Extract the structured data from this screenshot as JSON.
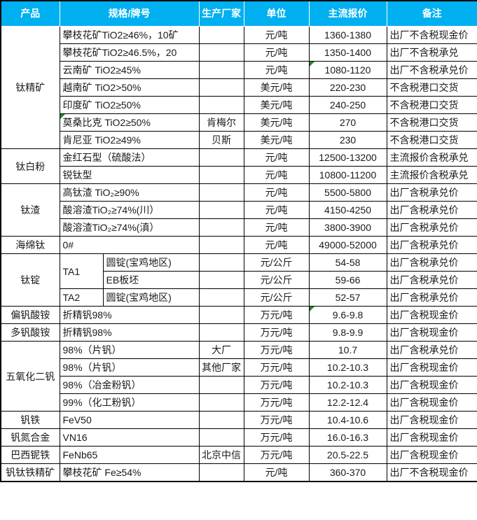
{
  "table": {
    "header_bg": "#00b0f0",
    "header_text_color": "#ffffff",
    "grid_color": "#000000",
    "flag_color": "#1e8e1e",
    "columns": [
      "产品",
      "规格/牌号",
      "生产厂家",
      "单位",
      "主流报价",
      "备注"
    ],
    "rows": [
      {
        "product": "钛精矿",
        "product_span": 7,
        "spec": "攀枝花矿TiO2≥46%，10矿",
        "maker": "",
        "unit": "元/吨",
        "price": "1360-1380",
        "note": "出厂不含税现金价"
      },
      {
        "spec": "攀枝花矿TiO2≥46.5%，20",
        "maker": "",
        "unit": "元/吨",
        "price": "1350-1400",
        "note": "出厂不含税承兑"
      },
      {
        "spec": "云南矿 TiO2≥45%",
        "maker": "",
        "unit": "元/吨",
        "price": "1080-1120",
        "note": "出厂不含税承兑价",
        "price_flag": true
      },
      {
        "spec": "越南矿 TiO2>50%",
        "maker": "",
        "unit": "美元/吨",
        "price": "220-230",
        "note": "不含税港口交货"
      },
      {
        "spec": "印度矿 TiO2≥50%",
        "maker": "",
        "unit": "美元/吨",
        "price": "240-250",
        "note": "不含税港口交货"
      },
      {
        "spec": "莫桑比克 TiO2≥50%",
        "maker": "肯梅尔",
        "unit": "美元/吨",
        "price": "270",
        "note": "不含税港口交货",
        "spec_flag": true
      },
      {
        "spec": "肯尼亚 TiO2≥49%",
        "maker": "贝斯",
        "unit": "美元/吨",
        "price": "230",
        "note": "不含税港口交货"
      },
      {
        "product": "钛白粉",
        "product_span": 2,
        "spec": "金红石型（硫酸法）",
        "maker": "",
        "unit": "元/吨",
        "price": "12500-13200",
        "note": "主流报价含税承兑"
      },
      {
        "spec": "锐钛型",
        "maker": "",
        "unit": "元/吨",
        "price": "10800-11200",
        "note": "主流报价含税承兑"
      },
      {
        "product": "钛渣",
        "product_span": 3,
        "spec": "高钛渣 TiO₂≥90%",
        "maker": "",
        "unit": "元/吨",
        "price": "5500-5800",
        "note": "出厂含税承兑价"
      },
      {
        "spec": "酸溶渣TiO₂≥74%(川）",
        "maker": "",
        "unit": "元/吨",
        "price": "4150-4250",
        "note": "出厂含税承兑价"
      },
      {
        "spec": "酸溶渣TiO₂≥74%(滇）",
        "maker": "",
        "unit": "元/吨",
        "price": "3800-3900",
        "note": "出厂含税承兑价"
      },
      {
        "product": "海绵钛",
        "product_span": 1,
        "spec": "0#",
        "maker": "",
        "unit": "元/吨",
        "price": "49000-52000",
        "note": "出厂含税承兑价"
      },
      {
        "product": "钛锭",
        "product_span": 3,
        "spec_a": "TA1",
        "spec_a_span": 2,
        "spec_b": "圆锭(宝鸡地区)",
        "maker": "",
        "unit": "元/公斤",
        "price": "54-58",
        "note": "出厂含税承兑价"
      },
      {
        "spec_b": "EB板坯",
        "maker": "",
        "unit": "元/公斤",
        "price": "59-66",
        "note": "出厂含税承兑价"
      },
      {
        "spec_a": "TA2",
        "spec_a_span": 1,
        "spec_b": "圆锭(宝鸡地区)",
        "maker": "",
        "unit": "元/公斤",
        "price": "52-57",
        "note": "出厂含税承兑价"
      },
      {
        "product": "偏钒酸铵",
        "product_span": 1,
        "spec": "折精钒98%",
        "maker": "",
        "unit": "万元/吨",
        "price": "9.6-9.8",
        "note": "出厂含税现金价",
        "price_flag": true
      },
      {
        "product": "多钒酸铵",
        "product_span": 1,
        "spec": "折精钒98%",
        "maker": "",
        "unit": "万元/吨",
        "price": "9.8-9.9",
        "note": "出厂含税现金价"
      },
      {
        "product": "五氧化二钒",
        "product_span": 4,
        "spec": "98%（片钒）",
        "maker": "大厂",
        "unit": "万元/吨",
        "price": "10.7",
        "note": "出厂含税承兑价"
      },
      {
        "spec": "98%（片钒）",
        "maker": "其他厂家",
        "unit": "万元/吨",
        "price": "10.2-10.3",
        "note": "出厂含税现金价"
      },
      {
        "spec": "98%（冶金粉钒）",
        "maker": "",
        "unit": "万元/吨",
        "price": "10.2-10.3",
        "note": "出厂含税现金价"
      },
      {
        "spec": "99%（化工粉钒）",
        "maker": "",
        "unit": "万元/吨",
        "price": "12.2-12.4",
        "note": "出厂含税现金价"
      },
      {
        "product": "钒铁",
        "product_span": 1,
        "spec": "FeV50",
        "maker": "",
        "unit": "万元/吨",
        "price": "10.4-10.6",
        "note": "出厂含税现金价"
      },
      {
        "product": "钒氮合金",
        "product_span": 1,
        "spec": "VN16",
        "maker": "",
        "unit": "万元/吨",
        "price": "16.0-16.3",
        "note": "出厂含税现金价"
      },
      {
        "product": "巴西铌铁",
        "product_span": 1,
        "spec": "FeNb65",
        "maker": "北京中信",
        "unit": "万元/吨",
        "price": "20.5-22.5",
        "note": "出厂含税现金价"
      },
      {
        "product": "钒钛铁精矿",
        "product_span": 1,
        "spec": "攀枝花矿 Fe≥54%",
        "maker": "",
        "unit": "元/吨",
        "price": "360-370",
        "note": "出厂不含税现金价"
      }
    ]
  }
}
